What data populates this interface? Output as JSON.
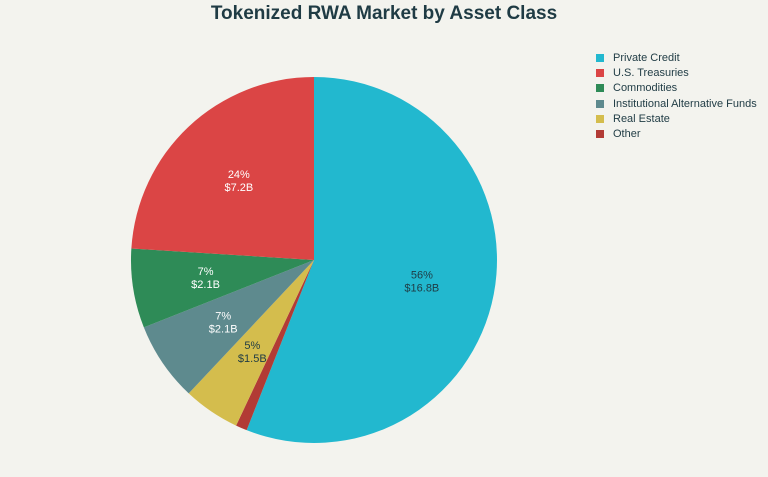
{
  "chart_data": {
    "type": "pie",
    "title": "Tokenized RWA Market by Asset Class",
    "legend_position": "top-right",
    "slices": [
      {
        "name": "Private Credit",
        "value": 16.8,
        "percent_label": "56%",
        "value_label": "$16.8B",
        "color": "#22b8cf",
        "label_color": "#1f3b44"
      },
      {
        "name": "Other",
        "value": 0.3,
        "percent_label": "",
        "value_label": "",
        "color": "#b23b35",
        "label_color": "#ffffff"
      },
      {
        "name": "Real Estate",
        "value": 1.5,
        "percent_label": "5%",
        "value_label": "$1.5B",
        "color": "#d4bd4d",
        "label_color": "#1f3b44"
      },
      {
        "name": "Institutional Alternative Funds",
        "value": 2.1,
        "percent_label": "7%",
        "value_label": "$2.1B",
        "color": "#5e8a8e",
        "label_color": "#ffffff"
      },
      {
        "name": "Commodities",
        "value": 2.1,
        "percent_label": "7%",
        "value_label": "$2.1B",
        "color": "#2e8b57",
        "label_color": "#ffffff"
      },
      {
        "name": "U.S. Treasuries",
        "value": 7.2,
        "percent_label": "24%",
        "value_label": "$7.2B",
        "color": "#db4545",
        "label_color": "#ffffff"
      }
    ],
    "legend": [
      {
        "name": "Private Credit",
        "color": "#22b8cf"
      },
      {
        "name": "U.S. Treasuries",
        "color": "#db4545"
      },
      {
        "name": "Commodities",
        "color": "#2e8b57"
      },
      {
        "name": "Institutional Alternative Funds",
        "color": "#5e8a8e"
      },
      {
        "name": "Real Estate",
        "color": "#d4bd4d"
      },
      {
        "name": "Other",
        "color": "#b23b35"
      }
    ]
  }
}
